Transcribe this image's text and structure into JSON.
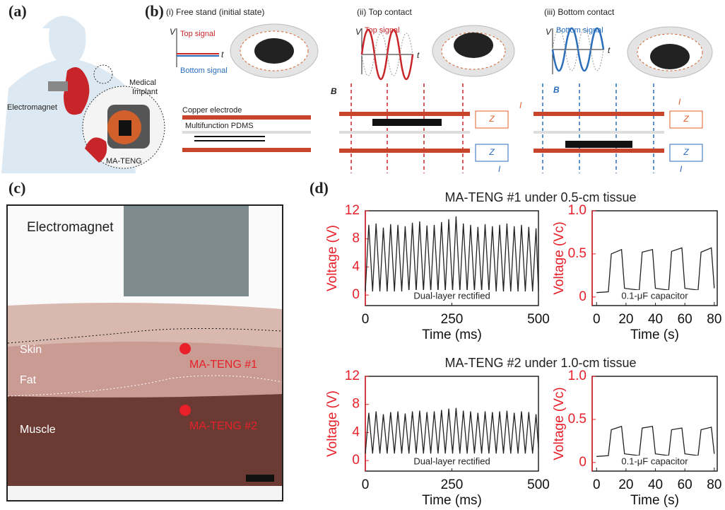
{
  "panel_a": {
    "label": "(a)",
    "electromagnet": "Electromagnet",
    "implant": [
      "Medical",
      "Implant"
    ],
    "mateng": "MA-TENG"
  },
  "panel_b": {
    "label": "(b)",
    "states": [
      "(i) Free stand (initial state)",
      "(ii) Top contact",
      "(iii) Bottom contact"
    ],
    "v": "V",
    "t": "t",
    "top_signal": "Top signal",
    "bottom_signal": "Bottom signal",
    "copper": "Copper electrode",
    "pdms": "Multifunction  PDMS",
    "b_field": "B",
    "current": "I",
    "impedance": "Z"
  },
  "panel_c": {
    "label": "(c)",
    "electromagnet": "Electromagnet",
    "layers": [
      "Skin",
      "Fat",
      "Muscle"
    ],
    "devices": [
      "MA-TENG #1",
      "MA-TENG #2"
    ]
  },
  "panel_d": {
    "label": "(d)",
    "titles": [
      "MA-TENG #1 under 0.5-cm tissue",
      "MA-TENG #2 under 1.0-cm tissue"
    ]
  },
  "chart_data": [
    {
      "type": "line",
      "color": "#222222",
      "axis_color": "#e8202a",
      "x": [
        0,
        10,
        21,
        31,
        42,
        52,
        63,
        73,
        84,
        94,
        105,
        115,
        126,
        136,
        147,
        157,
        168,
        178,
        189,
        199,
        210,
        220,
        231,
        241,
        252,
        262,
        273,
        283,
        294,
        304,
        315,
        325,
        336,
        346,
        357,
        367,
        378,
        388,
        399,
        409,
        420,
        430,
        441,
        451,
        462,
        472,
        483,
        493,
        500
      ],
      "values": [
        0.5,
        10,
        0.5,
        10.2,
        0.5,
        9.6,
        0.5,
        10.1,
        0.5,
        10,
        0.5,
        9.8,
        0.5,
        10.3,
        0.5,
        10.5,
        0.5,
        9.9,
        0.5,
        10,
        0.5,
        10.4,
        0.5,
        10.8,
        0.5,
        11.2,
        0.5,
        10.2,
        0.5,
        10,
        0.5,
        9.7,
        0.5,
        10.1,
        0.5,
        9.8,
        0.5,
        10,
        0.5,
        10.2,
        0.5,
        9.8,
        0.5,
        10,
        0.5,
        9.7,
        0.5,
        9.5,
        0.6
      ],
      "xlim": [
        0,
        500
      ],
      "xticks": [
        0,
        250,
        500
      ],
      "ylim": [
        -1.5,
        12
      ],
      "yticks": [
        0,
        4,
        8,
        12
      ],
      "xlabel": "Time (ms)",
      "ylabel": "Voltage (V)",
      "annotation": "Dual-layer rectified"
    },
    {
      "type": "line",
      "color": "#222222",
      "axis_color": "#e8202a",
      "x": [
        0,
        8,
        10,
        17,
        19,
        29,
        31,
        38,
        40,
        49,
        51,
        58,
        60,
        69,
        71,
        78,
        80
      ],
      "values": [
        0.05,
        0.06,
        0.5,
        0.55,
        0.1,
        0.08,
        0.52,
        0.55,
        0.1,
        0.08,
        0.53,
        0.57,
        0.1,
        0.08,
        0.52,
        0.57,
        0.1
      ],
      "xlim": [
        -3,
        82
      ],
      "xticks": [
        0,
        20,
        40,
        60,
        80
      ],
      "ylim": [
        -0.1,
        1
      ],
      "yticks": [
        0,
        0.5,
        {
          "value": 1,
          "label": "1.0"
        }
      ],
      "xlabel": "Time (s)",
      "ylabel": "Voltage (Vc)",
      "annotation": "0.1-μF capacitor"
    },
    {
      "type": "line",
      "color": "#222222",
      "axis_color": "#e8202a",
      "x": [
        0,
        10,
        21,
        31,
        42,
        52,
        63,
        73,
        84,
        94,
        105,
        115,
        126,
        136,
        147,
        157,
        168,
        178,
        189,
        199,
        210,
        220,
        231,
        241,
        252,
        262,
        273,
        283,
        294,
        304,
        315,
        325,
        336,
        346,
        357,
        367,
        378,
        388,
        399,
        409,
        420,
        430,
        441,
        451,
        462,
        472,
        483,
        493,
        500
      ],
      "values": [
        1,
        6.8,
        1,
        7,
        1,
        6.6,
        1,
        6.9,
        1,
        7,
        1,
        6.7,
        1,
        7,
        1,
        7.1,
        1,
        6.9,
        1,
        7,
        1,
        7.2,
        1,
        7.4,
        1,
        7.5,
        1,
        7.1,
        1,
        7,
        1,
        6.8,
        1,
        7,
        1,
        6.9,
        1,
        7,
        1,
        7.1,
        1,
        6.8,
        1,
        7,
        1,
        6.9,
        1,
        6.6,
        1.8
      ],
      "xlim": [
        0,
        500
      ],
      "xticks": [
        0,
        250,
        500
      ],
      "ylim": [
        -1.5,
        12
      ],
      "yticks": [
        0,
        4,
        8,
        12
      ],
      "xlabel": "Time (ms)",
      "ylabel": "Voltage (V)",
      "annotation": "Dual-layer rectified"
    },
    {
      "type": "line",
      "color": "#222222",
      "axis_color": "#e8202a",
      "x": [
        0,
        8,
        10,
        17,
        19,
        29,
        31,
        38,
        40,
        49,
        51,
        58,
        60,
        69,
        71,
        78,
        80
      ],
      "values": [
        0.07,
        0.08,
        0.38,
        0.42,
        0.1,
        0.08,
        0.4,
        0.42,
        0.1,
        0.08,
        0.38,
        0.4,
        0.1,
        0.08,
        0.38,
        0.41,
        0.1
      ],
      "xlim": [
        -3,
        82
      ],
      "xticks": [
        0,
        20,
        40,
        60,
        80
      ],
      "ylim": [
        -0.1,
        1
      ],
      "yticks": [
        0,
        0.5,
        {
          "value": 1,
          "label": "1.0"
        }
      ],
      "xlabel": "Time (s)",
      "ylabel": "Voltage (Vc)",
      "annotation": "0.1-μF capacitor"
    }
  ]
}
